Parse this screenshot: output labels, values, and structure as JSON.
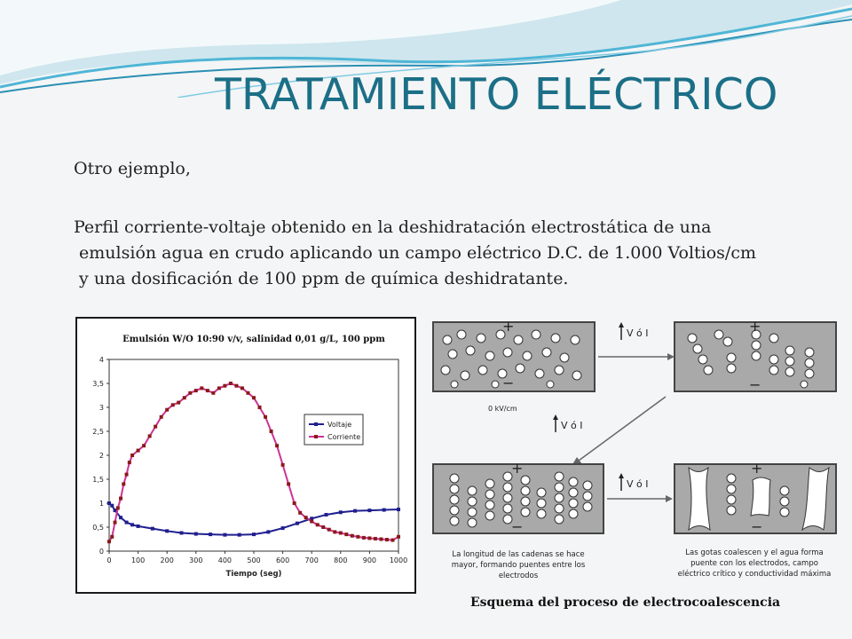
{
  "slide": {
    "title": "TRATAMIENTO ELÉCTRICO",
    "intro": "Otro ejemplo,",
    "paragraph_lines": [
      "Perfil corriente-voltaje obtenido en la deshidratación electrostática de una",
      " emulsión agua en crudo aplicando un campo eléctrico D.C. de 1.000 Voltios/cm",
      " y una dosificación de 100 ppm de química deshidratante."
    ],
    "caption": "Esquema del proceso de electrocoalescencia",
    "accent_color": "#1b6f87"
  },
  "diagram": {
    "arrow_label": "V ó I",
    "panel1_label": "0 kV/cm",
    "panel3_text": [
      "La longitud de las cadenas se hace",
      "mayor, formando puentes entre los",
      "electrodos"
    ],
    "panel4_text": [
      "Las gotas coalescen y el agua forma",
      "puente con los electrodos, campo",
      "eléctrico crítico y conductividad máxima"
    ],
    "plus": "+",
    "minus": "−"
  },
  "chart_data": {
    "type": "line",
    "title": "Emulsión W/O 10:90 v/v, salinidad 0,01 g/L, 100 ppm",
    "xlabel": "Tiempo (seg)",
    "ylabel": "",
    "xlim": [
      0,
      1000
    ],
    "ylim": [
      0,
      4
    ],
    "xticks": [
      0,
      100,
      200,
      300,
      400,
      500,
      600,
      700,
      800,
      900,
      1000
    ],
    "yticks": [
      0,
      0.5,
      1,
      1.5,
      2,
      2.5,
      3,
      3.5,
      4
    ],
    "ytick_labels": [
      "0",
      "0,5",
      "1",
      "1,5",
      "2",
      "2,5",
      "3",
      "3,5",
      "4"
    ],
    "legend_position": "right",
    "series": [
      {
        "name": "Voltaje",
        "color": "#1f1f8f",
        "points": [
          [
            0,
            1.0
          ],
          [
            10,
            0.95
          ],
          [
            20,
            0.85
          ],
          [
            40,
            0.7
          ],
          [
            60,
            0.6
          ],
          [
            80,
            0.55
          ],
          [
            100,
            0.52
          ],
          [
            150,
            0.47
          ],
          [
            200,
            0.42
          ],
          [
            250,
            0.38
          ],
          [
            300,
            0.36
          ],
          [
            350,
            0.35
          ],
          [
            400,
            0.34
          ],
          [
            450,
            0.34
          ],
          [
            500,
            0.35
          ],
          [
            550,
            0.4
          ],
          [
            600,
            0.48
          ],
          [
            650,
            0.58
          ],
          [
            700,
            0.68
          ],
          [
            750,
            0.76
          ],
          [
            800,
            0.81
          ],
          [
            850,
            0.84
          ],
          [
            900,
            0.85
          ],
          [
            950,
            0.86
          ],
          [
            1000,
            0.87
          ]
        ]
      },
      {
        "name": "Corriente",
        "color": "#cc3399",
        "points": [
          [
            0,
            0.2
          ],
          [
            10,
            0.3
          ],
          [
            20,
            0.6
          ],
          [
            30,
            0.9
          ],
          [
            40,
            1.1
          ],
          [
            50,
            1.4
          ],
          [
            60,
            1.6
          ],
          [
            70,
            1.85
          ],
          [
            80,
            2.0
          ],
          [
            100,
            2.1
          ],
          [
            120,
            2.2
          ],
          [
            140,
            2.4
          ],
          [
            160,
            2.6
          ],
          [
            180,
            2.8
          ],
          [
            200,
            2.95
          ],
          [
            220,
            3.05
          ],
          [
            240,
            3.1
          ],
          [
            260,
            3.2
          ],
          [
            280,
            3.3
          ],
          [
            300,
            3.35
          ],
          [
            320,
            3.4
          ],
          [
            340,
            3.35
          ],
          [
            360,
            3.3
          ],
          [
            380,
            3.4
          ],
          [
            400,
            3.45
          ],
          [
            420,
            3.5
          ],
          [
            440,
            3.45
          ],
          [
            460,
            3.4
          ],
          [
            480,
            3.3
          ],
          [
            500,
            3.2
          ],
          [
            520,
            3.0
          ],
          [
            540,
            2.8
          ],
          [
            560,
            2.5
          ],
          [
            580,
            2.2
          ],
          [
            600,
            1.8
          ],
          [
            620,
            1.4
          ],
          [
            640,
            1.0
          ],
          [
            660,
            0.8
          ],
          [
            680,
            0.7
          ],
          [
            700,
            0.62
          ],
          [
            720,
            0.55
          ],
          [
            740,
            0.5
          ],
          [
            760,
            0.45
          ],
          [
            780,
            0.4
          ],
          [
            800,
            0.38
          ],
          [
            820,
            0.35
          ],
          [
            840,
            0.32
          ],
          [
            860,
            0.3
          ],
          [
            880,
            0.28
          ],
          [
            900,
            0.27
          ],
          [
            920,
            0.26
          ],
          [
            940,
            0.25
          ],
          [
            960,
            0.24
          ],
          [
            980,
            0.23
          ],
          [
            1000,
            0.3
          ]
        ]
      }
    ]
  }
}
